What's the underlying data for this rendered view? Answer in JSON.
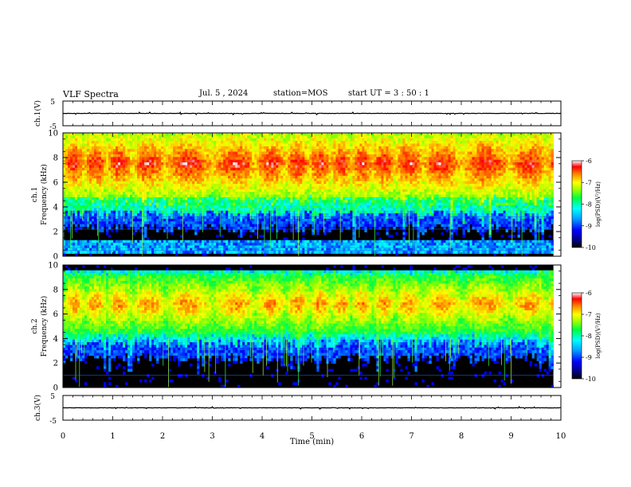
{
  "header": {
    "title": "VLF Spectra",
    "date": "Jul. 5 , 2024",
    "station": "station=MOS",
    "start": "start UT = 3 : 50 : 1"
  },
  "chart_data": [
    {
      "type": "line",
      "name": "ch1-waveform",
      "ylabel": "ch.1(V)",
      "ylim": [
        -5,
        5
      ],
      "yticks": [
        "5",
        "-5"
      ],
      "xlim": [
        0,
        10
      ],
      "series": [
        {
          "baseline": 0
        }
      ]
    },
    {
      "type": "heatmap",
      "name": "ch1-spectrogram",
      "ylabel": "ch.1\nFrequency (kHz)",
      "ylim": [
        0,
        10
      ],
      "yticks": [
        0,
        2,
        4,
        6,
        8,
        10
      ],
      "xlim": [
        0,
        10
      ],
      "data_xmax": 9.85,
      "band_khz": [
        3.8,
        9.9
      ],
      "band_peak_khz": 7.5,
      "colorbar": {
        "label": "log(PSD)(V²/Hz)",
        "ticks": [
          "-6",
          "-7",
          "-8",
          "-9",
          "-10"
        ],
        "range": [
          -10,
          -6
        ]
      }
    },
    {
      "type": "heatmap",
      "name": "ch2-spectrogram",
      "ylabel": "ch.2\nFrequency (kHz)",
      "ylim": [
        0,
        10
      ],
      "yticks": [
        0,
        2,
        4,
        6,
        8,
        10
      ],
      "xlim": [
        0,
        10
      ],
      "data_xmax": 9.85,
      "band_khz": [
        4.0,
        9.5
      ],
      "band_peak_khz": 6.8,
      "colorbar": {
        "label": "log(PSD)(V²/Hz)",
        "ticks": [
          "-6",
          "-7",
          "-8",
          "-9",
          "-10"
        ],
        "range": [
          -10,
          -6
        ]
      }
    },
    {
      "type": "line",
      "name": "ch3-waveform",
      "ylabel": "ch.3(V)",
      "ylim": [
        -5,
        5
      ],
      "yticks": [
        "5",
        "-5"
      ],
      "xlim": [
        0,
        10
      ],
      "xticks": [
        0,
        1,
        2,
        3,
        4,
        5,
        6,
        7,
        8,
        9,
        10
      ],
      "xlabel": "Time (min)",
      "series": [
        {
          "baseline": 0
        }
      ]
    }
  ],
  "labels": {
    "ch1_waveform": "ch.1(V)",
    "ch3_waveform": "ch.3(V)",
    "ch1_spec_top": "ch.1",
    "ch2_spec_top": "ch.2",
    "freq": "Frequency (kHz)",
    "xlabel": "Time (min)",
    "colorbar": "log(PSD)(V²/Hz)",
    "cb_ticks": [
      "-6",
      "-7",
      "-8",
      "-9",
      "-10"
    ],
    "wave_ticks": [
      "5",
      "-5"
    ],
    "freq_ticks": [
      "0",
      "2",
      "4",
      "6",
      "8",
      "10"
    ],
    "time_ticks": [
      "0",
      "1",
      "2",
      "3",
      "4",
      "5",
      "6",
      "7",
      "8",
      "9",
      "10"
    ]
  }
}
